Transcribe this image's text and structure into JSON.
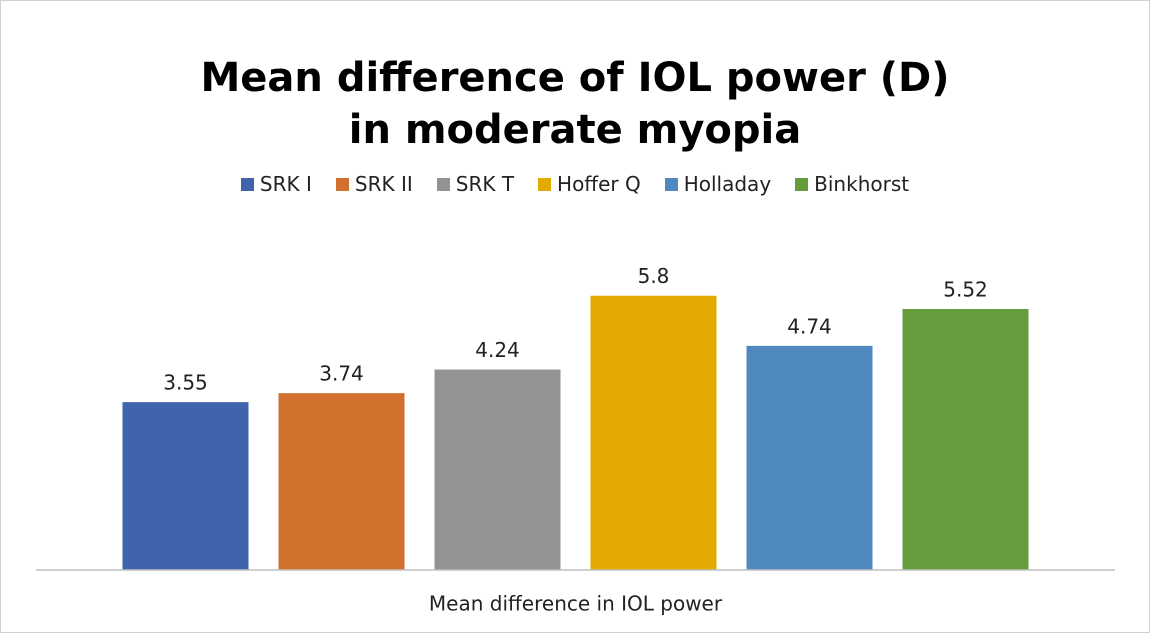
{
  "chart_data": {
    "type": "bar",
    "title": "Mean difference of IOL power (D) in moderate myopia",
    "categories": [
      "Mean difference in IOL power"
    ],
    "series": [
      {
        "name": "SRK I",
        "color": "#3f63ad",
        "values": [
          3.55
        ]
      },
      {
        "name": "SRK II",
        "color": "#d2712e",
        "values": [
          3.74
        ]
      },
      {
        "name": "SRK T",
        "color": "#939393",
        "values": [
          4.24
        ]
      },
      {
        "name": "Hoffer Q",
        "color": "#e2aa00",
        "values": [
          5.8
        ]
      },
      {
        "name": "Holladay",
        "color": "#4f89c0",
        "values": [
          4.74
        ]
      },
      {
        "name": "Binkhorst",
        "color": "#659c3c",
        "values": [
          5.52
        ]
      }
    ],
    "ylim": [
      0,
      7
    ],
    "legend": "top"
  }
}
